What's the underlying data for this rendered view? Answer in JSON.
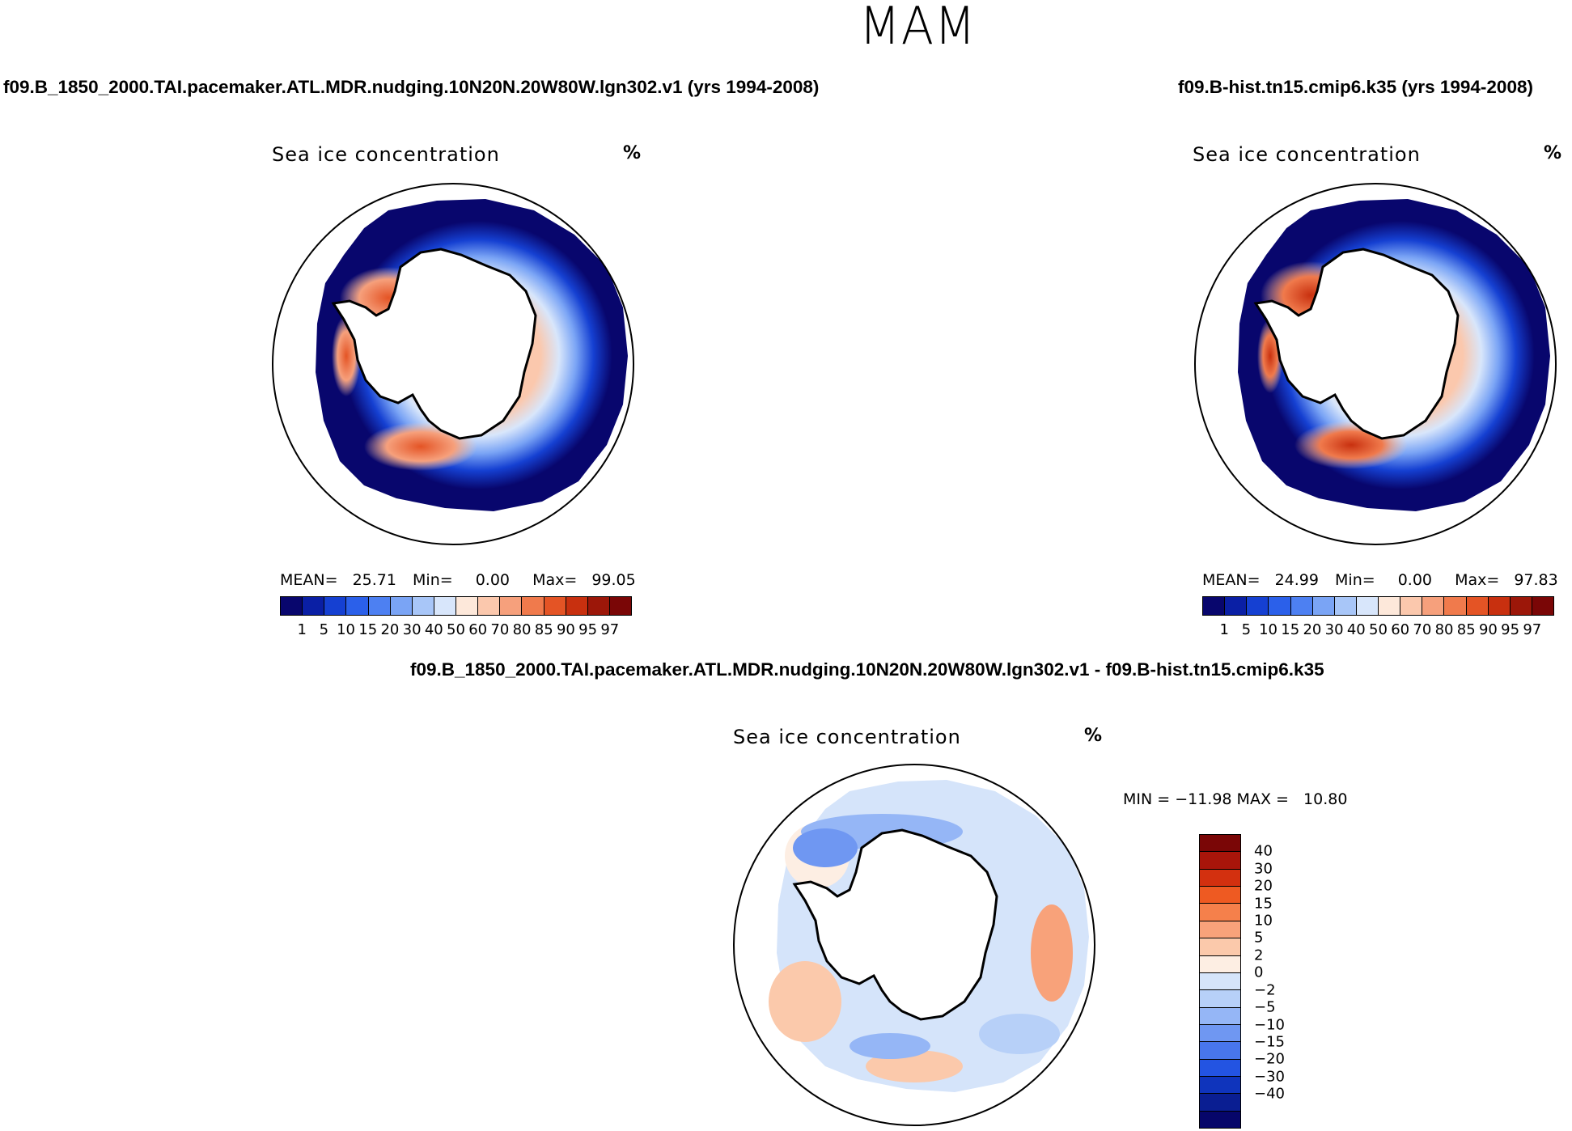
{
  "season": "MAM",
  "units": "%",
  "panels": {
    "left": {
      "run_title": "f09.B_1850_2000.TAI.pacemaker.ATL.MDR.nudging.10N20N.20W80W.lgn302.v1 (yrs 1994-2008)",
      "plot_title": "Sea ice concentration",
      "stats": {
        "mean_label": "MEAN=",
        "mean": "25.71",
        "min_label": "Min=",
        "min": "0.00",
        "max_label": "Max=",
        "max": "99.05"
      }
    },
    "right": {
      "run_title": "f09.B-hist.tn15.cmip6.k35 (yrs 1994-2008)",
      "plot_title": "Sea ice concentration",
      "stats": {
        "mean_label": "MEAN=",
        "mean": "24.99",
        "min_label": "Min=",
        "min": "0.00",
        "max_label": "Max=",
        "max": "97.83"
      }
    },
    "diff": {
      "run_title": "f09.B_1850_2000.TAI.pacemaker.ATL.MDR.nudging.10N20N.20W80W.lgn302.v1 - f09.B-hist.tn15.cmip6.k35",
      "plot_title": "Sea ice concentration",
      "stats": "MIN = −11.98 MAX =   10.80"
    }
  },
  "colors": {
    "abs_scale": [
      "#08066d",
      "#0a1fa5",
      "#1540d2",
      "#2b60ea",
      "#4d80f2",
      "#7aa4f5",
      "#a8c6f8",
      "#d8e6fb",
      "#fde8da",
      "#fbc8ad",
      "#f6a07c",
      "#f07a4c",
      "#e45425",
      "#c8300f",
      "#9c1709",
      "#7a0606"
    ],
    "diff_scale": [
      "#7a0606",
      "#a8150a",
      "#d3300f",
      "#ee5a22",
      "#f5804b",
      "#f8a27a",
      "#fbc9ab",
      "#fdeee3",
      "#d5e4fa",
      "#b7d0f8",
      "#95b6f6",
      "#6f97f2",
      "#4876ec",
      "#2354e2",
      "#0f34bc",
      "#0a1e92",
      "#06066a"
    ],
    "ice_low": "#0a1fa5",
    "ice_high": "#e45425"
  },
  "chart_data": [
    {
      "type": "heatmap",
      "title": "Sea ice concentration",
      "units": "%",
      "projection": "south polar stereographic",
      "legend_levels": [
        1,
        5,
        10,
        15,
        20,
        30,
        40,
        50,
        60,
        70,
        80,
        85,
        90,
        95,
        97
      ],
      "legend_labels": [
        "1",
        "5",
        "10",
        "15",
        "20",
        "30",
        "40",
        "50",
        "60",
        "70",
        "80",
        "85",
        "90",
        "95",
        "97"
      ],
      "mean": 25.71,
      "min": 0.0,
      "max": 99.05
    },
    {
      "type": "heatmap",
      "title": "Sea ice concentration",
      "units": "%",
      "projection": "south polar stereographic",
      "legend_levels": [
        1,
        5,
        10,
        15,
        20,
        30,
        40,
        50,
        60,
        70,
        80,
        85,
        90,
        95,
        97
      ],
      "legend_labels": [
        "1",
        "5",
        "10",
        "15",
        "20",
        "30",
        "40",
        "50",
        "60",
        "70",
        "80",
        "85",
        "90",
        "95",
        "97"
      ],
      "mean": 24.99,
      "min": 0.0,
      "max": 97.83
    },
    {
      "type": "heatmap",
      "title": "Sea ice concentration",
      "units": "%",
      "projection": "south polar stereographic",
      "legend_levels": [
        40,
        30,
        20,
        15,
        10,
        5,
        2,
        0,
        -2,
        -5,
        -10,
        -15,
        -20,
        -30,
        -40
      ],
      "legend_labels": [
        "40",
        "30",
        "20",
        "15",
        "10",
        "5",
        "2",
        "0",
        "−2",
        "−5",
        "−10",
        "−15",
        "−20",
        "−30",
        "−40"
      ],
      "min": -11.98,
      "max": 10.8
    }
  ]
}
